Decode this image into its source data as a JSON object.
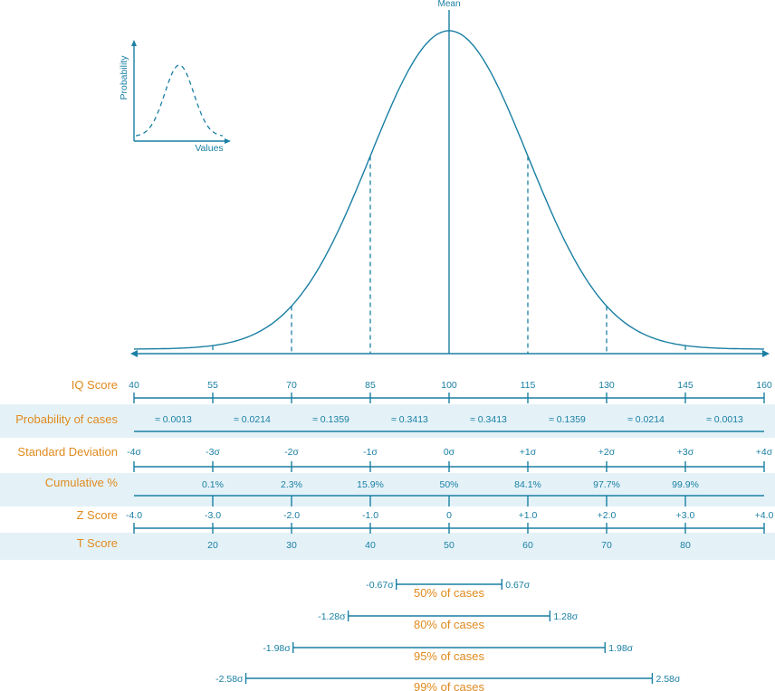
{
  "labels": {
    "mean": "Mean",
    "inset_ylabel": "Probability",
    "inset_xlabel": "Values"
  },
  "rows": {
    "iq": {
      "label": "IQ Score",
      "values": [
        "40",
        "55",
        "70",
        "85",
        "100",
        "115",
        "130",
        "145",
        "160"
      ]
    },
    "prob": {
      "label": "Probability of cases",
      "values": [
        "≈ 0.0013",
        "≈ 0.0214",
        "≈ 0.1359",
        "≈ 0.3413",
        "≈ 0.3413",
        "≈ 0.1359",
        "≈ 0.0214",
        "≈ 0.0013"
      ]
    },
    "sd": {
      "label": "Standard Deviation",
      "values": [
        "-4σ",
        "-3σ",
        "-2σ",
        "-1σ",
        "0σ",
        "+1σ",
        "+2σ",
        "+3σ",
        "+4σ"
      ]
    },
    "cum": {
      "label": "Cumulative %",
      "values": [
        "0.1%",
        "2.3%",
        "15.9%",
        "50%",
        "84.1%",
        "97.7%",
        "99.9%"
      ]
    },
    "z": {
      "label": "Z Score",
      "values": [
        "-4.0",
        "-3.0",
        "-2.0",
        "-1.0",
        "0",
        "+1.0",
        "+2.0",
        "+3.0",
        "+4.0"
      ]
    },
    "t": {
      "label": "T Score",
      "values": [
        "20",
        "30",
        "40",
        "50",
        "60",
        "70",
        "80"
      ]
    }
  },
  "intervals": [
    {
      "left": "-0.67σ",
      "right": "0.67σ",
      "caption": "50% of cases",
      "sigma": 0.67
    },
    {
      "left": "-1.28σ",
      "right": "1.28σ",
      "caption": "80% of cases",
      "sigma": 1.28
    },
    {
      "left": "-1.98σ",
      "right": "1.98σ",
      "caption": "95% of cases",
      "sigma": 1.98
    },
    {
      "left": "-2.58σ",
      "right": "2.58σ",
      "caption": "99% of cases",
      "sigma": 2.58
    }
  ],
  "colors": {
    "line": "#1a7fa3",
    "label": "#e08a1e",
    "band": "#e4f2f8"
  }
}
